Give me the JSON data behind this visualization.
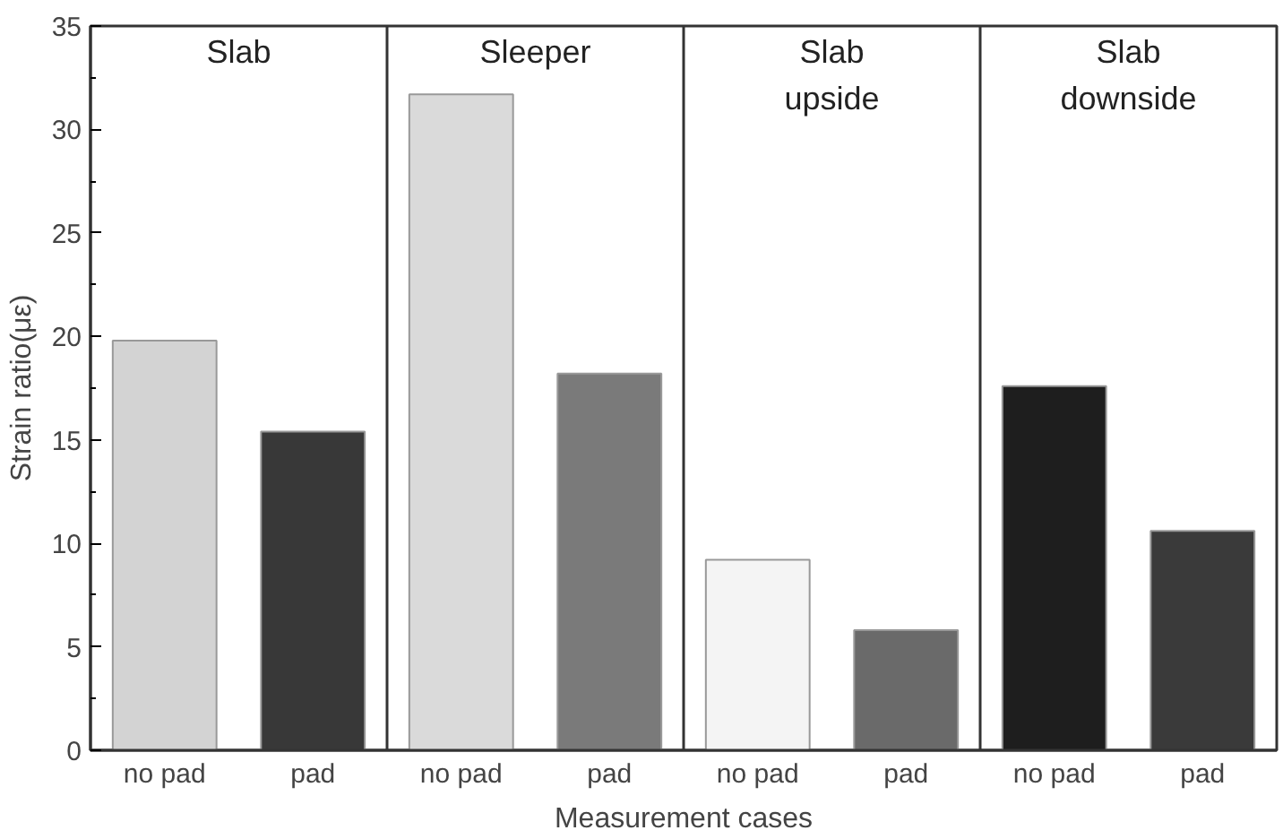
{
  "chart_data": {
    "type": "bar",
    "xlabel": "Measurement cases",
    "ylabel": "Strain ratio(με)",
    "categories": [
      "no pad",
      "pad",
      "no pad",
      "pad",
      "no pad",
      "pad",
      "no pad",
      "pad"
    ],
    "values": [
      19.8,
      15.4,
      31.7,
      18.2,
      9.2,
      5.8,
      17.6,
      10.6
    ],
    "colors": [
      "#d3d3d3",
      "#383838",
      "#dadada",
      "#7a7a7a",
      "#f4f4f4",
      "#6a6a6a",
      "#1e1e1e",
      "#3a3a3a"
    ],
    "ylim": [
      0,
      35
    ],
    "yticks": [
      0,
      5,
      10,
      15,
      20,
      25,
      30,
      35
    ],
    "annotations": [
      "Slab",
      "Sleeper",
      "Slab\nupside",
      "Slab\ndownside"
    ],
    "grid": false
  }
}
